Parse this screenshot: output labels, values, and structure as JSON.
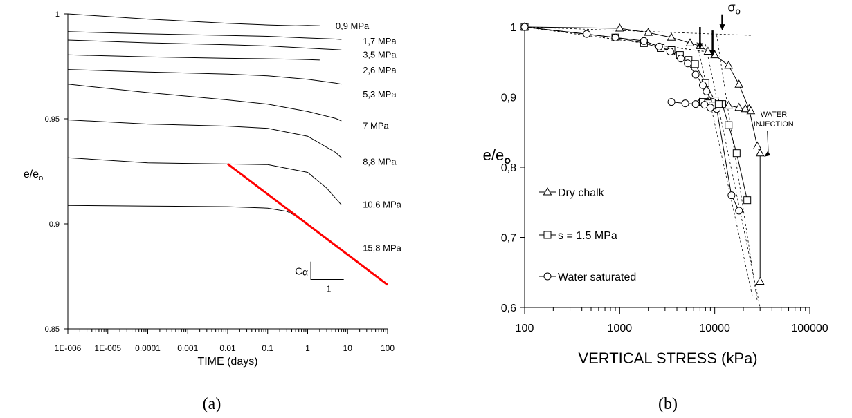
{
  "chart_data": [
    {
      "type": "line",
      "panel_caption": "(a)",
      "xlabel": "TIME (days)",
      "ylabel": "e/e",
      "ylabel_sub": "o",
      "x_scale": "log",
      "xlim": [
        1e-06,
        100
      ],
      "ylim": [
        0.85,
        1.0
      ],
      "x_ticks": [
        {
          "v": 1e-06,
          "label": "1E-006"
        },
        {
          "v": 1e-05,
          "label": "1E-005"
        },
        {
          "v": 0.0001,
          "label": "0.0001"
        },
        {
          "v": 0.001,
          "label": "0.001"
        },
        {
          "v": 0.01,
          "label": "0.01"
        },
        {
          "v": 0.1,
          "label": "0.1"
        },
        {
          "v": 1,
          "label": "1"
        },
        {
          "v": 10,
          "label": "10"
        },
        {
          "v": 100,
          "label": "100"
        }
      ],
      "y_ticks": [
        {
          "v": 0.85,
          "label": "0.85"
        },
        {
          "v": 0.9,
          "label": "0.9"
        },
        {
          "v": 0.95,
          "label": "0.95"
        },
        {
          "v": 1.0,
          "label": "1"
        }
      ],
      "series": [
        {
          "name": "0,9 MPa",
          "color": "#000000",
          "x": [
            1e-06,
            0.0001,
            0.01,
            0.1,
            0.5,
            1,
            2
          ],
          "y": [
            1.0,
            0.9975,
            0.9955,
            0.9947,
            0.9943,
            0.9945,
            0.9943
          ]
        },
        {
          "name": "1,7 MPa",
          "color": "#000000",
          "x": [
            1e-06,
            0.0001,
            0.01,
            0.1,
            1,
            5,
            7
          ],
          "y": [
            0.9915,
            0.9905,
            0.9897,
            0.9893,
            0.9885,
            0.988,
            0.9878
          ]
        },
        {
          "name": "3,5 MPa",
          "color": "#000000",
          "x": [
            1e-06,
            0.0001,
            0.01,
            0.1,
            1,
            5,
            7
          ],
          "y": [
            0.9875,
            0.9862,
            0.9853,
            0.9847,
            0.9837,
            0.983,
            0.9828
          ]
        },
        {
          "name": "2,6 MPa",
          "color": "#000000",
          "x": [
            1e-06,
            0.0001,
            0.01,
            0.1,
            0.5,
            1,
            2
          ],
          "y": [
            0.9805,
            0.9795,
            0.9788,
            0.9786,
            0.9784,
            0.9782,
            0.978
          ]
        },
        {
          "name": "",
          "color": "#000000",
          "x": [
            1e-06,
            0.0001,
            0.01,
            0.1,
            1,
            5,
            7
          ],
          "y": [
            0.9735,
            0.9723,
            0.9713,
            0.9705,
            0.9688,
            0.967,
            0.9665
          ]
        },
        {
          "name": "5,3 MPa",
          "color": "#000000",
          "x": [
            1e-06,
            0.0001,
            0.01,
            0.1,
            1,
            5,
            7
          ],
          "y": [
            0.9665,
            0.9625,
            0.959,
            0.957,
            0.9535,
            0.9502,
            0.949
          ]
        },
        {
          "name": "7 MPa",
          "color": "#000000",
          "x": [
            1e-06,
            0.0001,
            0.01,
            0.1,
            1,
            5,
            7
          ],
          "y": [
            0.9495,
            0.9475,
            0.9465,
            0.9455,
            0.9417,
            0.934,
            0.9315
          ]
        },
        {
          "name": "8,8 MPa",
          "color": "#000000",
          "x": [
            1e-06,
            0.0001,
            0.01,
            0.1,
            1,
            3,
            7
          ],
          "y": [
            0.9315,
            0.929,
            0.9285,
            0.9282,
            0.9245,
            0.917,
            0.909
          ]
        },
        {
          "name": "10,6 MPa",
          "color": "#000000",
          "x": [
            1e-06,
            0.0001,
            0.01,
            0.1,
            0.3,
            0.7,
            1
          ],
          "y": [
            0.9088,
            0.9085,
            0.9082,
            0.9075,
            0.906,
            0.9025,
            0.8995
          ]
        }
      ],
      "labels": [
        {
          "text": "0,9 MPa",
          "x": 5,
          "y": 0.994
        },
        {
          "text": "1,7 MPa",
          "x": 24,
          "y": 0.9868
        },
        {
          "text": "3,5 MPa",
          "x": 24,
          "y": 0.9805
        },
        {
          "text": "2,6 MPa",
          "x": 24,
          "y": 0.973
        },
        {
          "text": "5,3 MPa",
          "x": 24,
          "y": 0.9615
        },
        {
          "text": "7 MPa",
          "x": 24,
          "y": 0.9465
        },
        {
          "text": "8,8 MPa",
          "x": 24,
          "y": 0.9294
        },
        {
          "text": "10,6 MPa",
          "x": 24,
          "y": 0.909
        },
        {
          "text": "15,8 MPa",
          "x": 24,
          "y": 0.8884
        }
      ],
      "trend_line": {
        "color": "#ff0000",
        "x": [
          0.01,
          100
        ],
        "y": [
          0.9285,
          0.871
        ]
      },
      "slope_annotation": {
        "symbol": "C",
        "subscript": "α",
        "run_label": "1",
        "x": [
          1.2,
          8
        ],
        "y": [
          0.882,
          0.8735
        ]
      }
    },
    {
      "type": "line",
      "panel_caption": "(b)",
      "xlabel": "VERTICAL STRESS (kPa)",
      "ylabel": "e/e",
      "ylabel_sub": "o",
      "x_scale": "log",
      "xlim": [
        100,
        100000
      ],
      "ylim": [
        0.6,
        1.0
      ],
      "x_ticks": [
        {
          "v": 100,
          "label": "100"
        },
        {
          "v": 1000,
          "label": "1000"
        },
        {
          "v": 10000,
          "label": "10000"
        },
        {
          "v": 100000,
          "label": "100000"
        }
      ],
      "y_ticks": [
        {
          "v": 0.6,
          "label": "0,6"
        },
        {
          "v": 0.7,
          "label": "0,7"
        },
        {
          "v": 0.8,
          "label": "0,8"
        },
        {
          "v": 0.9,
          "label": "0,9"
        },
        {
          "v": 1.0,
          "label": "1"
        }
      ],
      "series": [
        {
          "name": "Dry chalk",
          "marker": "triangle",
          "x": [
            100,
            1000,
            2000,
            3500,
            5500,
            7000,
            8500,
            10000,
            14000,
            18000,
            23000,
            28000,
            30000,
            30000
          ],
          "y": [
            1.0,
            0.998,
            0.992,
            0.985,
            0.977,
            0.973,
            0.965,
            0.96,
            0.945,
            0.918,
            0.883,
            0.83,
            0.82,
            0.637
          ]
        },
        {
          "name": "s = 1.5 MPa",
          "marker": "square",
          "x": [
            100,
            900,
            1800,
            2700,
            3500,
            4300,
            5300,
            6200,
            8000,
            10000,
            12000,
            14000,
            17000,
            22000
          ],
          "y": [
            1.0,
            0.985,
            0.977,
            0.97,
            0.967,
            0.96,
            0.953,
            0.947,
            0.92,
            0.895,
            0.89,
            0.86,
            0.82,
            0.753
          ]
        },
        {
          "name": "Water saturated",
          "marker": "circle",
          "x": [
            100,
            450,
            900,
            1800,
            2600,
            3400,
            4400,
            5200,
            6300,
            7500,
            8200,
            9500,
            10500,
            15000,
            18000
          ],
          "y": [
            1.0,
            0.99,
            0.985,
            0.98,
            0.972,
            0.965,
            0.955,
            0.948,
            0.932,
            0.917,
            0.908,
            0.893,
            0.883,
            0.76,
            0.738
          ]
        },
        {
          "name": "",
          "marker": "triangle",
          "x": [
            7000,
            8500,
            11000,
            14000,
            18000,
            21000,
            24000
          ],
          "y": [
            0.893,
            0.893,
            0.89,
            0.888,
            0.885,
            0.883,
            0.88
          ]
        },
        {
          "name": "",
          "marker": "square",
          "x": [
            7500,
            8500,
            9500,
            11000
          ],
          "y": [
            0.893,
            0.891,
            0.888,
            0.89
          ]
        },
        {
          "name": "",
          "marker": "circle",
          "x": [
            3500,
            4900,
            6300,
            7800,
            9000
          ],
          "y": [
            0.893,
            0.891,
            0.89,
            0.889,
            0.885
          ]
        }
      ],
      "construction_lines": [
        {
          "x": [
            100,
            25000
          ],
          "y": [
            1.0,
            0.988
          ]
        },
        {
          "x": [
            10500,
            28000
          ],
          "y": [
            0.988,
            0.61
          ]
        },
        {
          "x": [
            100,
            10000
          ],
          "y": [
            1.0,
            0.963
          ]
        },
        {
          "x": [
            8000,
            30000
          ],
          "y": [
            0.975,
            0.6
          ]
        },
        {
          "x": [
            100,
            8000
          ],
          "y": [
            1.0,
            0.965
          ]
        },
        {
          "x": [
            6500,
            25000
          ],
          "y": [
            0.978,
            0.615
          ]
        }
      ],
      "arrows": [
        {
          "label": "",
          "x": 7000,
          "y_from": 1.0,
          "y_to": 0.968
        },
        {
          "label": "",
          "x": 9500,
          "y_from": 0.995,
          "y_to": 0.958
        },
        {
          "label": "σ",
          "sub": "o",
          "x": 12000,
          "y_from": 1.018,
          "y_to": 0.995
        }
      ],
      "annotation": {
        "lines": [
          "WATER",
          "INJECTION"
        ],
        "x": 37000,
        "y": 0.86,
        "target_x": 30000,
        "target_y": 0.815
      },
      "legend": {
        "placement": "left",
        "entries": [
          "Dry chalk",
          "s = 1.5 MPa",
          "Water saturated"
        ]
      }
    }
  ]
}
